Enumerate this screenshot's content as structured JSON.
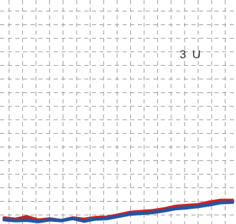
{
  "chart_data": {
    "type": "line",
    "title": "",
    "xlabel": "",
    "ylabel": "",
    "annotation": "3 U",
    "grid": true,
    "xlim": [
      0,
      20
    ],
    "ylim": [
      0,
      50
    ],
    "x": [
      0,
      1,
      2,
      3,
      4,
      5,
      6,
      7,
      8,
      9,
      10,
      11,
      12,
      13,
      14,
      15,
      16,
      17,
      18,
      19,
      20
    ],
    "series": [
      {
        "color": "#cc2222",
        "values": [
          0.9,
          0.6,
          1.2,
          0.4,
          0.7,
          0.3,
          0.9,
          0.6,
          1.0,
          1.1,
          1.6,
          2.2,
          2.4,
          2.6,
          3.0,
          3.6,
          3.8,
          4.0,
          4.6,
          5.0,
          5.0
        ]
      },
      {
        "color": "#2455a4",
        "values": [
          0.5,
          0.3,
          0.4,
          0.1,
          0.5,
          0.3,
          0.8,
          0.2,
          0.7,
          0.8,
          1.3,
          1.8,
          2.0,
          2.2,
          2.6,
          3.1,
          3.3,
          3.6,
          4.0,
          4.5,
          4.6
        ]
      }
    ]
  }
}
